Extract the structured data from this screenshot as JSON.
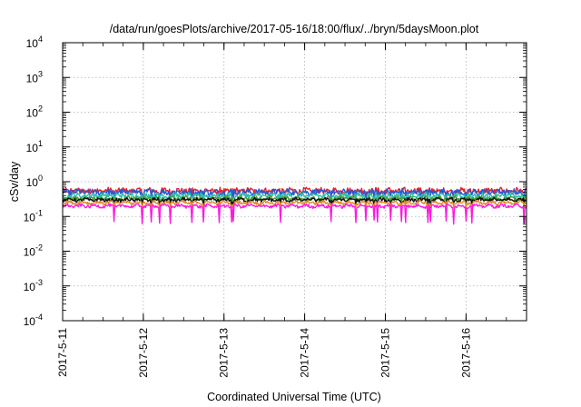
{
  "chart_data": {
    "type": "line",
    "title": "/data/run/goesPlots/archive/2017-05-16/18:00/flux/../bryn/5daysMoon.plot",
    "xlabel": "Coordinated Universal Time (UTC)",
    "ylabel": "cSv/day",
    "x_range": [
      "2017-05-11",
      "2017-05-16 18:00"
    ],
    "ylim": [
      0.0001,
      10000
    ],
    "y_scale": "log",
    "grid": true,
    "x_ticks": [
      "2017-5-11",
      "2017-5-12",
      "2017-5-13",
      "2017-5-14",
      "2017-5-15",
      "2017-5-16"
    ],
    "y_ticks": [
      {
        "base": "10",
        "exp": "4"
      },
      {
        "base": "10",
        "exp": "3"
      },
      {
        "base": "10",
        "exp": "2"
      },
      {
        "base": "10",
        "exp": "1"
      },
      {
        "base": "10",
        "exp": "0"
      },
      {
        "base": "10",
        "exp": "-1"
      },
      {
        "base": "10",
        "exp": "-2"
      },
      {
        "base": "10",
        "exp": "-3"
      },
      {
        "base": "10",
        "exp": "-4"
      }
    ],
    "series": [
      {
        "color": "#e4222b",
        "level": 0.55,
        "amplitude": 0.12
      },
      {
        "color": "#2a57d6",
        "level": 0.5,
        "amplitude": 0.12
      },
      {
        "color": "#2bbfa8",
        "level": 0.4,
        "amplitude": 0.1
      },
      {
        "color": "#4a9c3a",
        "level": 0.33,
        "amplitude": 0.08
      },
      {
        "color": "#111111",
        "level": 0.3,
        "amplitude": 0.07
      },
      {
        "color": "#e08a2a",
        "level": 0.25,
        "amplitude": 0.06
      },
      {
        "color": "#ff19e0",
        "level": 0.2,
        "amplitude": 0.06,
        "dips_to": 0.07
      }
    ]
  }
}
